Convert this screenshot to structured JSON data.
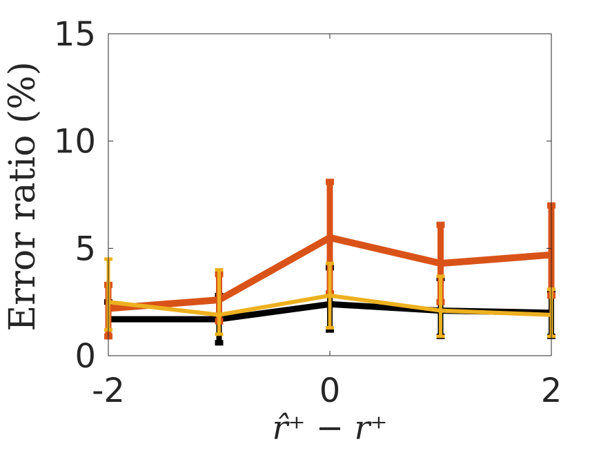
{
  "chart_data": {
    "type": "line",
    "title": "",
    "xlabel": "r̂⁺ − r⁺",
    "ylabel": "Error ratio (%)",
    "xlim": [
      -2,
      2
    ],
    "ylim": [
      0,
      15
    ],
    "xticks": [
      -2,
      0,
      2
    ],
    "xtick_labels": [
      "-2",
      "0",
      "2"
    ],
    "yticks": [
      0,
      5,
      10,
      15
    ],
    "ytick_labels": [
      "0",
      "5",
      "10",
      "15"
    ],
    "grid": false,
    "legend": "none",
    "x": [
      -2,
      -1,
      0,
      1,
      2
    ],
    "series": [
      {
        "color": "#000000",
        "values": [
          1.7,
          1.7,
          2.4,
          2.1,
          2.0
        ],
        "lower": [
          0.9,
          0.6,
          1.2,
          0.9,
          0.9
        ],
        "upper": [
          2.5,
          2.8,
          4.1,
          3.6,
          3.0
        ]
      },
      {
        "color": "#D95319",
        "values": [
          2.2,
          2.6,
          5.5,
          4.3,
          4.7
        ],
        "lower": [
          0.9,
          1.6,
          2.9,
          2.5,
          2.8
        ],
        "upper": [
          3.3,
          3.8,
          8.1,
          6.1,
          7.0
        ]
      },
      {
        "color": "#EDB120",
        "values": [
          2.5,
          1.9,
          2.8,
          2.1,
          1.9
        ],
        "lower": [
          1.2,
          1.0,
          1.3,
          0.9,
          0.9
        ],
        "upper": [
          4.5,
          4.0,
          4.3,
          3.7,
          3.1
        ]
      }
    ]
  }
}
